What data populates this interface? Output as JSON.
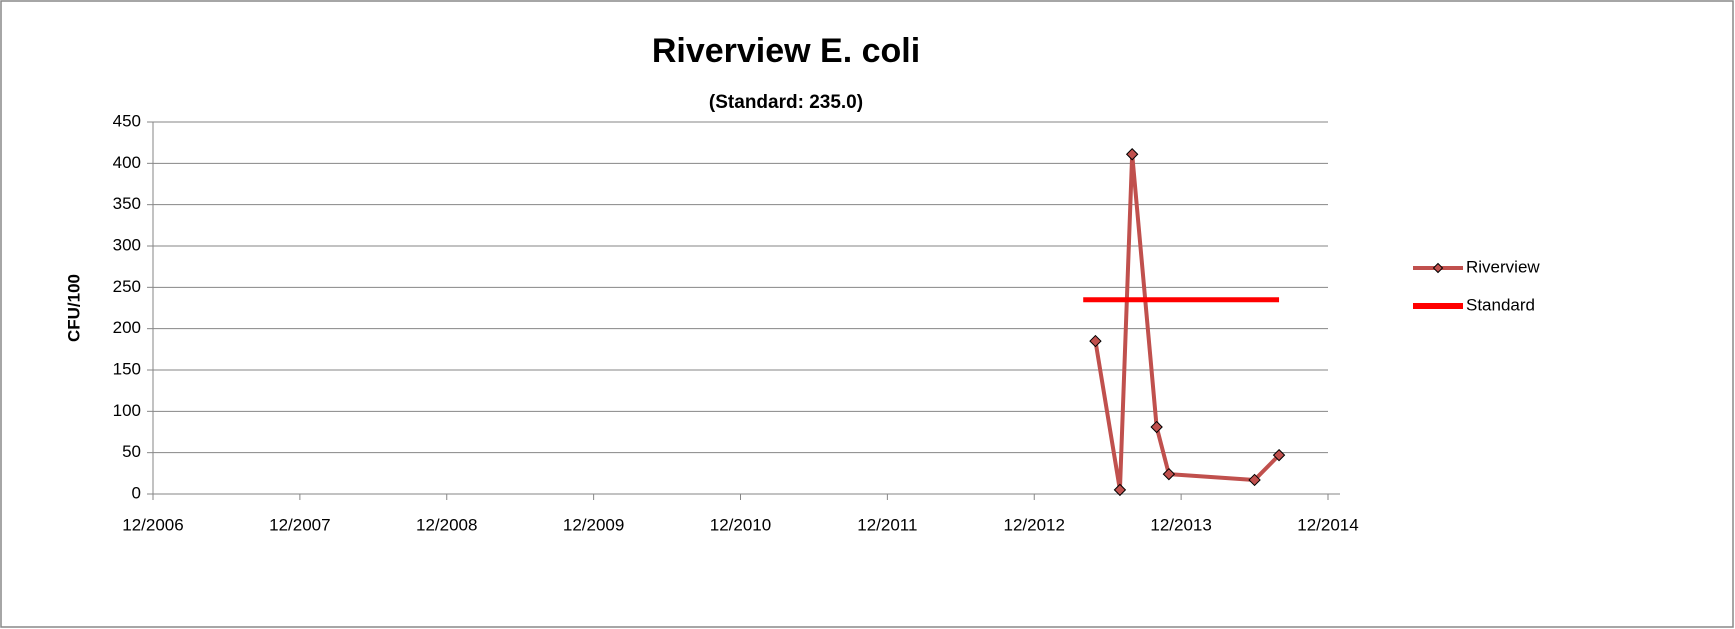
{
  "chart_data": {
    "type": "line",
    "title": "Riverview E. coli",
    "subtitle": "(Standard: 235.0)",
    "y_label": "CFU/100",
    "series": [
      {
        "name": "Riverview",
        "color": "#c0504d",
        "marker": "diamond",
        "x": [
          "2013-05",
          "2013-07",
          "2013-08",
          "2013-10",
          "2013-11",
          "2014-06",
          "2014-08"
        ],
        "values": [
          185,
          5,
          411,
          81,
          24,
          17,
          47
        ]
      },
      {
        "name": "Standard",
        "color": "#ff0000",
        "x": [
          "2013-04",
          "2014-08"
        ],
        "values": [
          235,
          235
        ]
      }
    ],
    "xlim": [
      "2006-12",
      "2014-12"
    ],
    "xticks": [
      {
        "value": "2006-12",
        "label": "12/2006"
      },
      {
        "value": "2007-12",
        "label": "12/2007"
      },
      {
        "value": "2008-12",
        "label": "12/2008"
      },
      {
        "value": "2009-12",
        "label": "12/2009"
      },
      {
        "value": "2010-12",
        "label": "12/2010"
      },
      {
        "value": "2011-12",
        "label": "12/2011"
      },
      {
        "value": "2012-12",
        "label": "12/2012"
      },
      {
        "value": "2013-12",
        "label": "12/2013"
      },
      {
        "value": "2014-12",
        "label": "12/2014"
      }
    ],
    "ylim": [
      0,
      450
    ],
    "yticks": [
      0,
      50,
      100,
      150,
      200,
      250,
      300,
      350,
      400,
      450
    ],
    "grid": true,
    "legend": "right"
  }
}
